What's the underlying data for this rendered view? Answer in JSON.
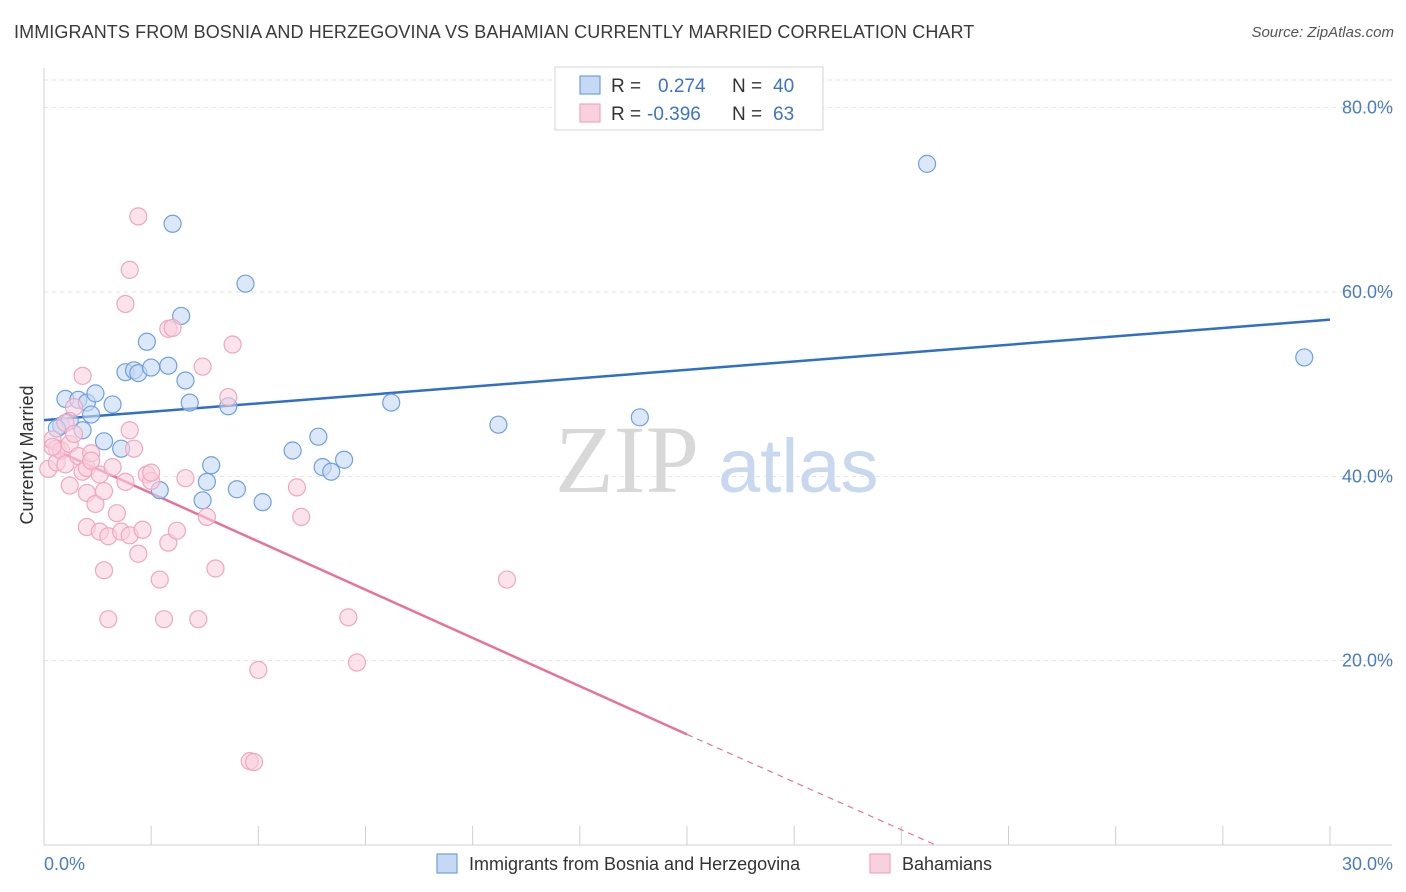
{
  "title": "IMMIGRANTS FROM BOSNIA AND HERZEGOVINA VS BAHAMIAN CURRENTLY MARRIED CORRELATION CHART",
  "source": "Source: ZipAtlas.com",
  "watermark": {
    "zip": "ZIP",
    "atlas": "atlas"
  },
  "chart_data": {
    "type": "scatter",
    "title": "IMMIGRANTS FROM BOSNIA AND HERZEGOVINA VS BAHAMIAN CURRENTLY MARRIED CORRELATION CHART",
    "xlabel": "",
    "ylabel": "Currently Married",
    "xlim": [
      0,
      30
    ],
    "ylim": [
      0,
      83
    ],
    "x_tick_labels": [
      "0.0%",
      "30.0%"
    ],
    "y_ticks": [
      20,
      40,
      60,
      80
    ],
    "y_tick_labels": [
      "20.0%",
      "40.0%",
      "60.0%",
      "80.0%"
    ],
    "legend": {
      "r_label": "R =",
      "n_label": "N =",
      "entries": [
        {
          "r": "0.274",
          "n": "40"
        },
        {
          "r": "-0.396",
          "n": "63"
        }
      ]
    },
    "series": [
      {
        "name": "Immigrants from Bosnia and Herzegovina",
        "color": "#6fa0e0",
        "fill": "#c5d9f4",
        "line_color": "#2f6fc6",
        "trend": {
          "x0": 0,
          "y0": 46.1,
          "x1": 30,
          "y1": 57.0
        },
        "points": [
          [
            0.4,
            45.5
          ],
          [
            0.5,
            48.4
          ],
          [
            0.6,
            46.0
          ],
          [
            0.8,
            48.3
          ],
          [
            0.9,
            45.0
          ],
          [
            1.0,
            48.0
          ],
          [
            1.1,
            46.7
          ],
          [
            1.2,
            49.0
          ],
          [
            1.4,
            43.8
          ],
          [
            1.6,
            47.8
          ],
          [
            1.8,
            43.0
          ],
          [
            1.9,
            51.3
          ],
          [
            2.1,
            51.5
          ],
          [
            2.2,
            51.2
          ],
          [
            2.4,
            54.6
          ],
          [
            2.5,
            51.8
          ],
          [
            2.7,
            38.5
          ],
          [
            2.9,
            52.0
          ],
          [
            3.0,
            67.4
          ],
          [
            3.2,
            57.4
          ],
          [
            3.3,
            50.4
          ],
          [
            3.4,
            48.0
          ],
          [
            3.7,
            37.4
          ],
          [
            3.8,
            39.4
          ],
          [
            3.9,
            41.2
          ],
          [
            4.3,
            47.6
          ],
          [
            4.5,
            38.6
          ],
          [
            4.7,
            60.9
          ],
          [
            5.1,
            37.2
          ],
          [
            5.8,
            42.8
          ],
          [
            6.4,
            44.3
          ],
          [
            6.5,
            41.0
          ],
          [
            6.7,
            40.5
          ],
          [
            7.0,
            41.8
          ],
          [
            8.1,
            48.0
          ],
          [
            10.6,
            45.6
          ],
          [
            13.9,
            46.4
          ],
          [
            20.6,
            73.9
          ],
          [
            29.4,
            52.9
          ],
          [
            0.3,
            45.2
          ]
        ]
      },
      {
        "name": "Bahamians",
        "color": "#f1a6bf",
        "fill": "#f9d0de",
        "line_color": "#e8729b",
        "trend": {
          "x0": 0,
          "y0": 43.4,
          "x1": 15.0,
          "y1": 12.0
        },
        "trend_dashed": {
          "x0": 15.0,
          "y0": 12.0,
          "x1": 20.8,
          "y1": 0.0
        },
        "points": [
          [
            0.1,
            40.8
          ],
          [
            0.2,
            44.0
          ],
          [
            0.3,
            43.0
          ],
          [
            0.3,
            41.5
          ],
          [
            0.4,
            42.8
          ],
          [
            0.5,
            45.8
          ],
          [
            0.5,
            41.3
          ],
          [
            0.6,
            39.0
          ],
          [
            0.6,
            43.5
          ],
          [
            0.7,
            47.5
          ],
          [
            0.8,
            42.2
          ],
          [
            0.9,
            40.5
          ],
          [
            0.9,
            50.9
          ],
          [
            1.0,
            40.9
          ],
          [
            1.0,
            38.2
          ],
          [
            1.0,
            34.5
          ],
          [
            1.1,
            42.5
          ],
          [
            1.2,
            37.0
          ],
          [
            1.3,
            40.2
          ],
          [
            1.3,
            34.0
          ],
          [
            1.4,
            29.8
          ],
          [
            1.4,
            38.4
          ],
          [
            1.5,
            24.5
          ],
          [
            1.5,
            33.5
          ],
          [
            1.6,
            41.0
          ],
          [
            1.7,
            36.0
          ],
          [
            1.8,
            34.0
          ],
          [
            1.9,
            39.4
          ],
          [
            2.0,
            62.4
          ],
          [
            1.9,
            58.7
          ],
          [
            2.0,
            33.6
          ],
          [
            2.0,
            45.0
          ],
          [
            2.1,
            43.0
          ],
          [
            2.2,
            68.2
          ],
          [
            2.2,
            31.6
          ],
          [
            2.3,
            34.2
          ],
          [
            2.4,
            40.2
          ],
          [
            2.5,
            39.5
          ],
          [
            2.5,
            40.4
          ],
          [
            2.7,
            28.8
          ],
          [
            2.8,
            24.5
          ],
          [
            2.9,
            32.8
          ],
          [
            2.9,
            56.0
          ],
          [
            3.0,
            56.1
          ],
          [
            3.1,
            34.1
          ],
          [
            3.3,
            39.8
          ],
          [
            3.6,
            24.5
          ],
          [
            3.7,
            51.9
          ],
          [
            3.8,
            35.6
          ],
          [
            4.0,
            30.0
          ],
          [
            4.3,
            48.6
          ],
          [
            4.4,
            54.3
          ],
          [
            4.8,
            9.1
          ],
          [
            4.9,
            9.0
          ],
          [
            5.0,
            19.0
          ],
          [
            5.9,
            38.8
          ],
          [
            6.0,
            35.6
          ],
          [
            7.1,
            24.7
          ],
          [
            7.3,
            19.8
          ],
          [
            10.8,
            28.8
          ],
          [
            0.2,
            43.2
          ],
          [
            0.7,
            44.6
          ],
          [
            1.1,
            41.7
          ]
        ]
      }
    ]
  },
  "bottom_legend": [
    {
      "label": "Immigrants from Bosnia and Herzegovina"
    },
    {
      "label": "Bahamians"
    }
  ]
}
